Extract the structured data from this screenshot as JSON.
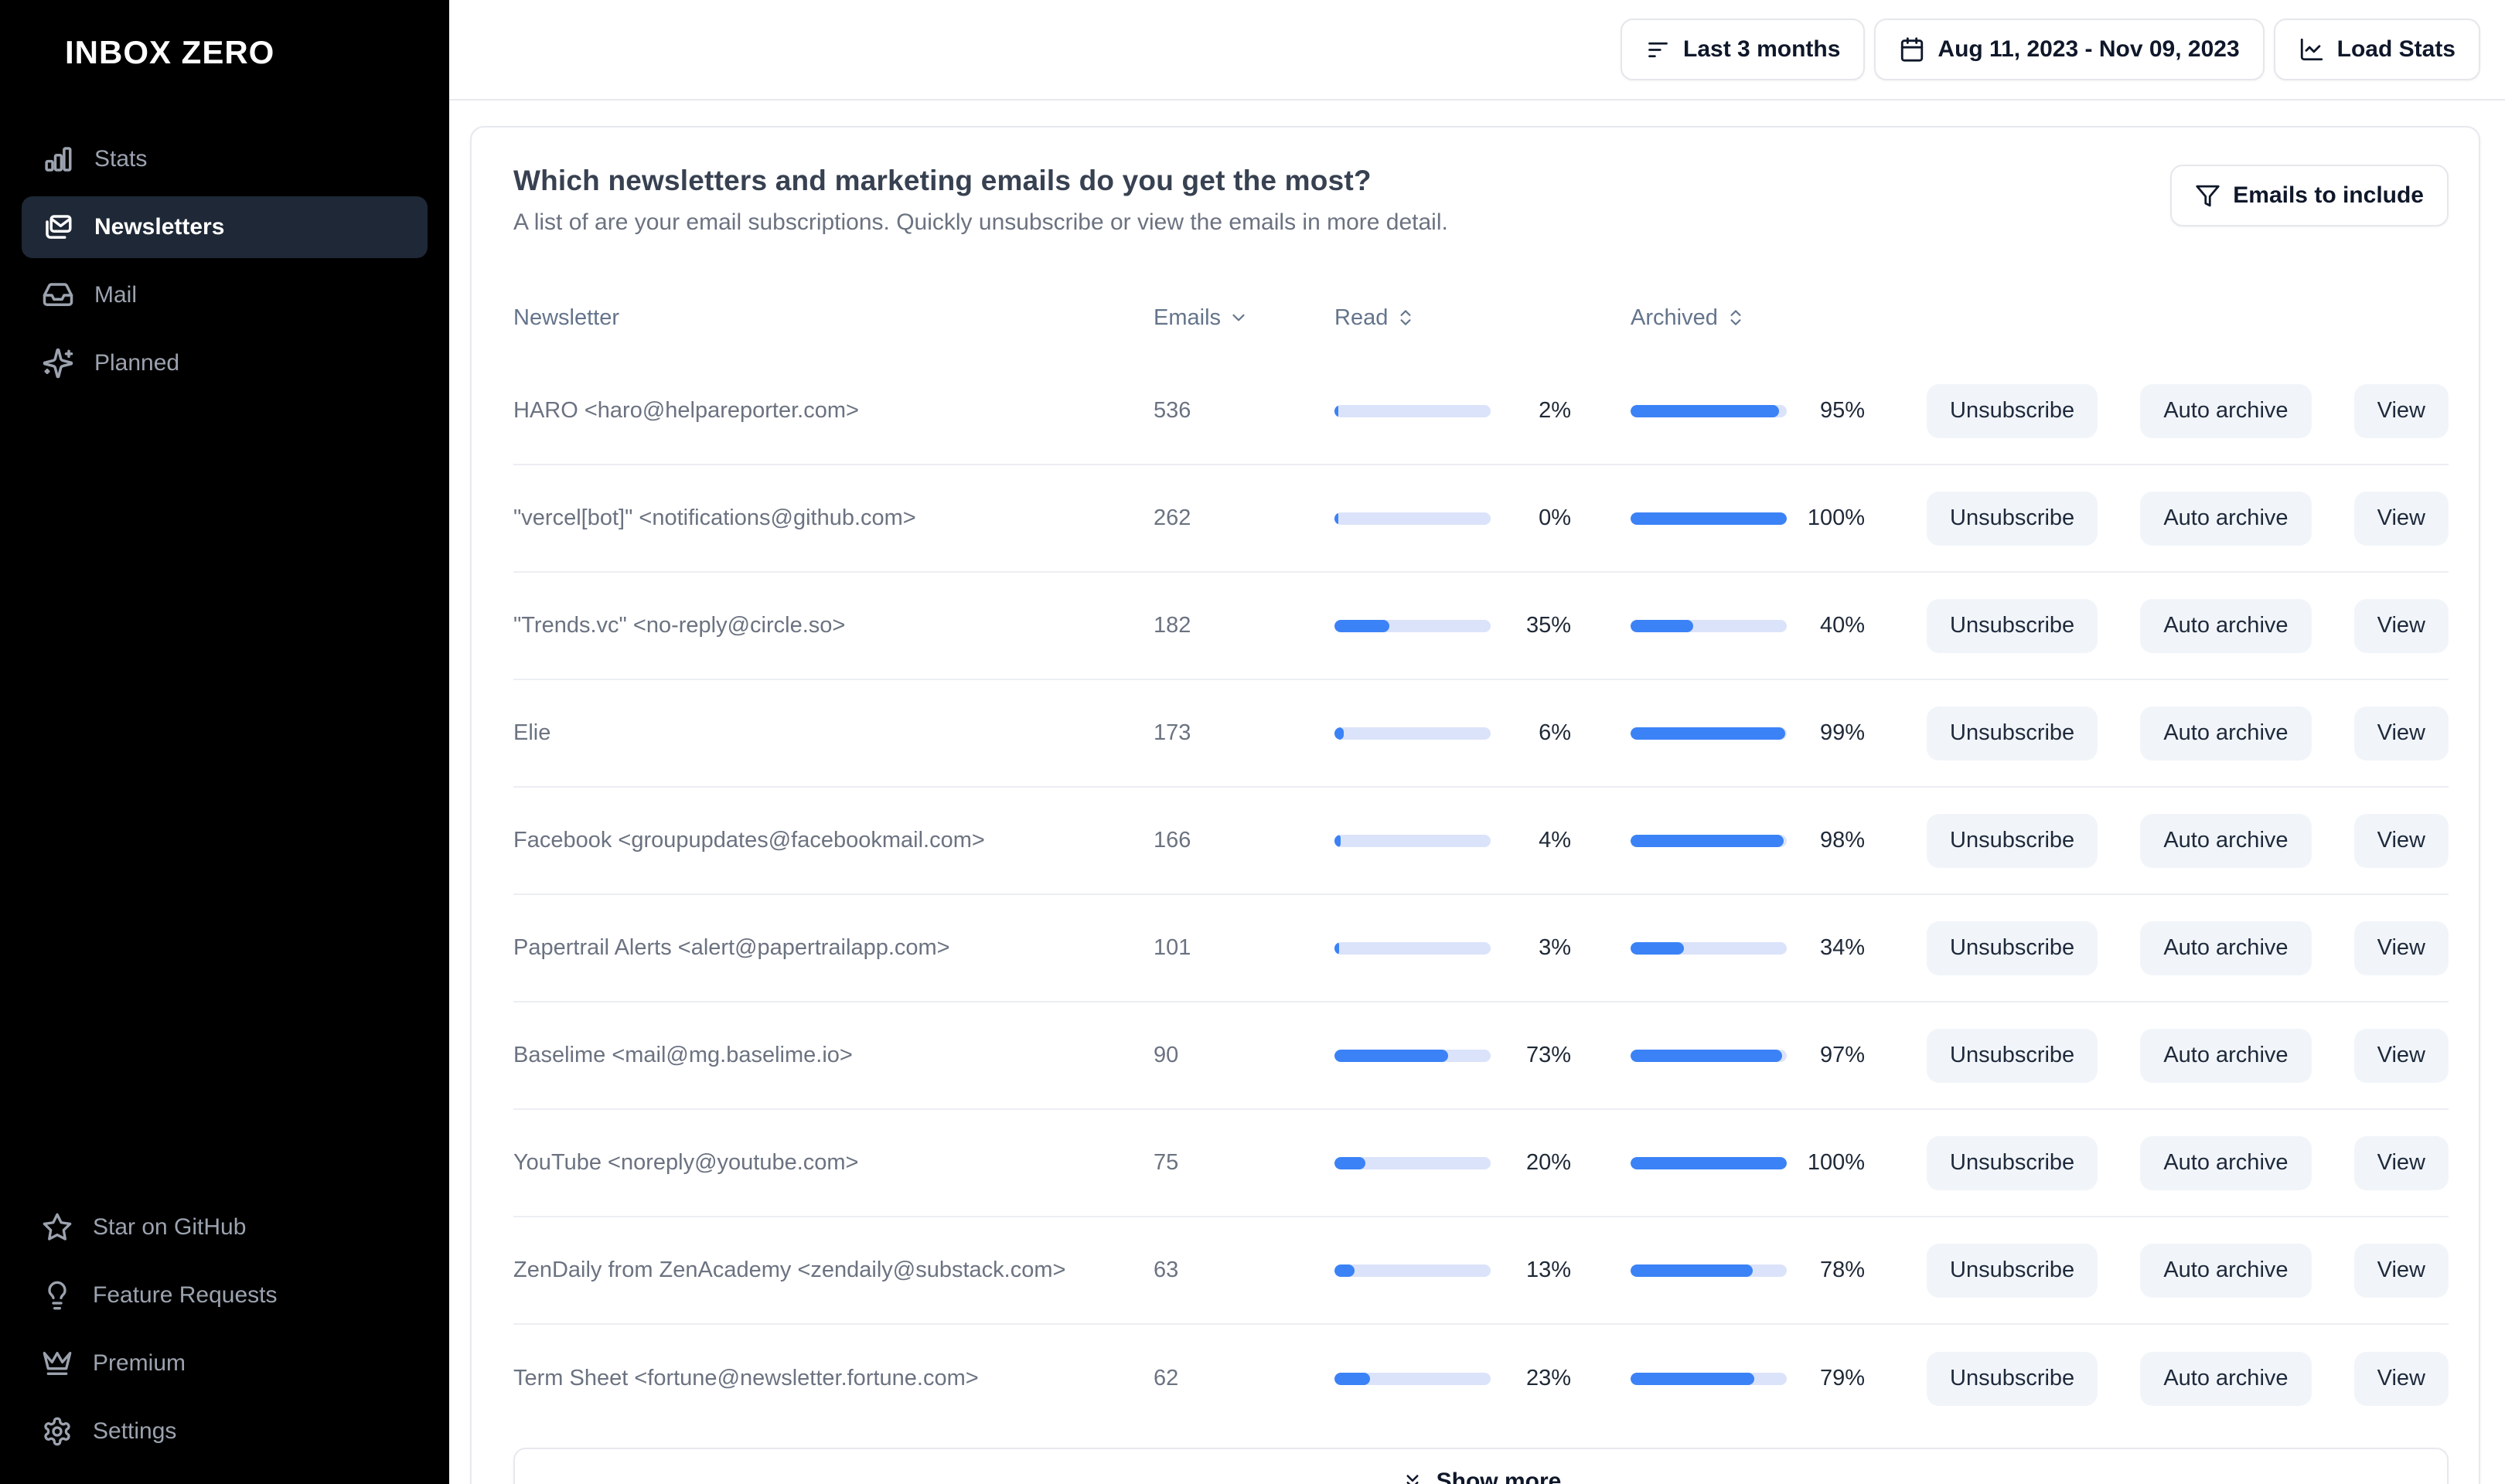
{
  "app": {
    "logo": "INBOX ZERO"
  },
  "sidebar": {
    "items": [
      {
        "label": "Stats",
        "icon": "bar-chart-icon",
        "active": false
      },
      {
        "label": "Newsletters",
        "icon": "newsletter-mail-icon",
        "active": true
      },
      {
        "label": "Mail",
        "icon": "inbox-icon",
        "active": false
      },
      {
        "label": "Planned",
        "icon": "sparkles-icon",
        "active": false
      }
    ],
    "footer_items": [
      {
        "label": "Star on GitHub",
        "icon": "star-icon"
      },
      {
        "label": "Feature Requests",
        "icon": "lightbulb-icon"
      },
      {
        "label": "Premium",
        "icon": "crown-icon"
      },
      {
        "label": "Settings",
        "icon": "gear-icon"
      }
    ]
  },
  "topbar": {
    "preset_label": "Last 3 months",
    "date_range": "Aug 11, 2023 - Nov 09, 2023",
    "load_stats_label": "Load Stats"
  },
  "panel": {
    "title": "Which newsletters and marketing emails do you get the most?",
    "subtitle": "A list of are your email subscriptions. Quickly unsubscribe or view the emails in more detail.",
    "filter_button_label": "Emails to include",
    "show_more_label": "Show more",
    "columns": {
      "newsletter": "Newsletter",
      "emails": "Emails",
      "read": "Read",
      "archived": "Archived"
    },
    "actions": {
      "unsubscribe": "Unsubscribe",
      "auto_archive": "Auto archive",
      "view": "View"
    },
    "rows": [
      {
        "name": "HARO <haro@helpareporter.com>",
        "emails": 536,
        "read_pct": 2,
        "archived_pct": 95
      },
      {
        "name": "\"vercel[bot]\" <notifications@github.com>",
        "emails": 262,
        "read_pct": 0,
        "archived_pct": 100
      },
      {
        "name": "\"Trends.vc\" <no-reply@circle.so>",
        "emails": 182,
        "read_pct": 35,
        "archived_pct": 40
      },
      {
        "name": "Elie",
        "emails": 173,
        "read_pct": 6,
        "archived_pct": 99
      },
      {
        "name": "Facebook <groupupdates@facebookmail.com>",
        "emails": 166,
        "read_pct": 4,
        "archived_pct": 98
      },
      {
        "name": "Papertrail Alerts <alert@papertrailapp.com>",
        "emails": 101,
        "read_pct": 3,
        "archived_pct": 34
      },
      {
        "name": "Baselime <mail@mg.baselime.io>",
        "emails": 90,
        "read_pct": 73,
        "archived_pct": 97
      },
      {
        "name": "YouTube <noreply@youtube.com>",
        "emails": 75,
        "read_pct": 20,
        "archived_pct": 100
      },
      {
        "name": "ZenDaily from ZenAcademy <zendaily@substack.com>",
        "emails": 63,
        "read_pct": 13,
        "archived_pct": 78
      },
      {
        "name": "Term Sheet <fortune@newsletter.fortune.com>",
        "emails": 62,
        "read_pct": 23,
        "archived_pct": 79
      }
    ]
  },
  "colors": {
    "bar_fill": "#3b82f6",
    "bar_track": "#dbe3fa",
    "sidebar_active_bg": "#1e2836",
    "border": "#e7e9ee"
  }
}
